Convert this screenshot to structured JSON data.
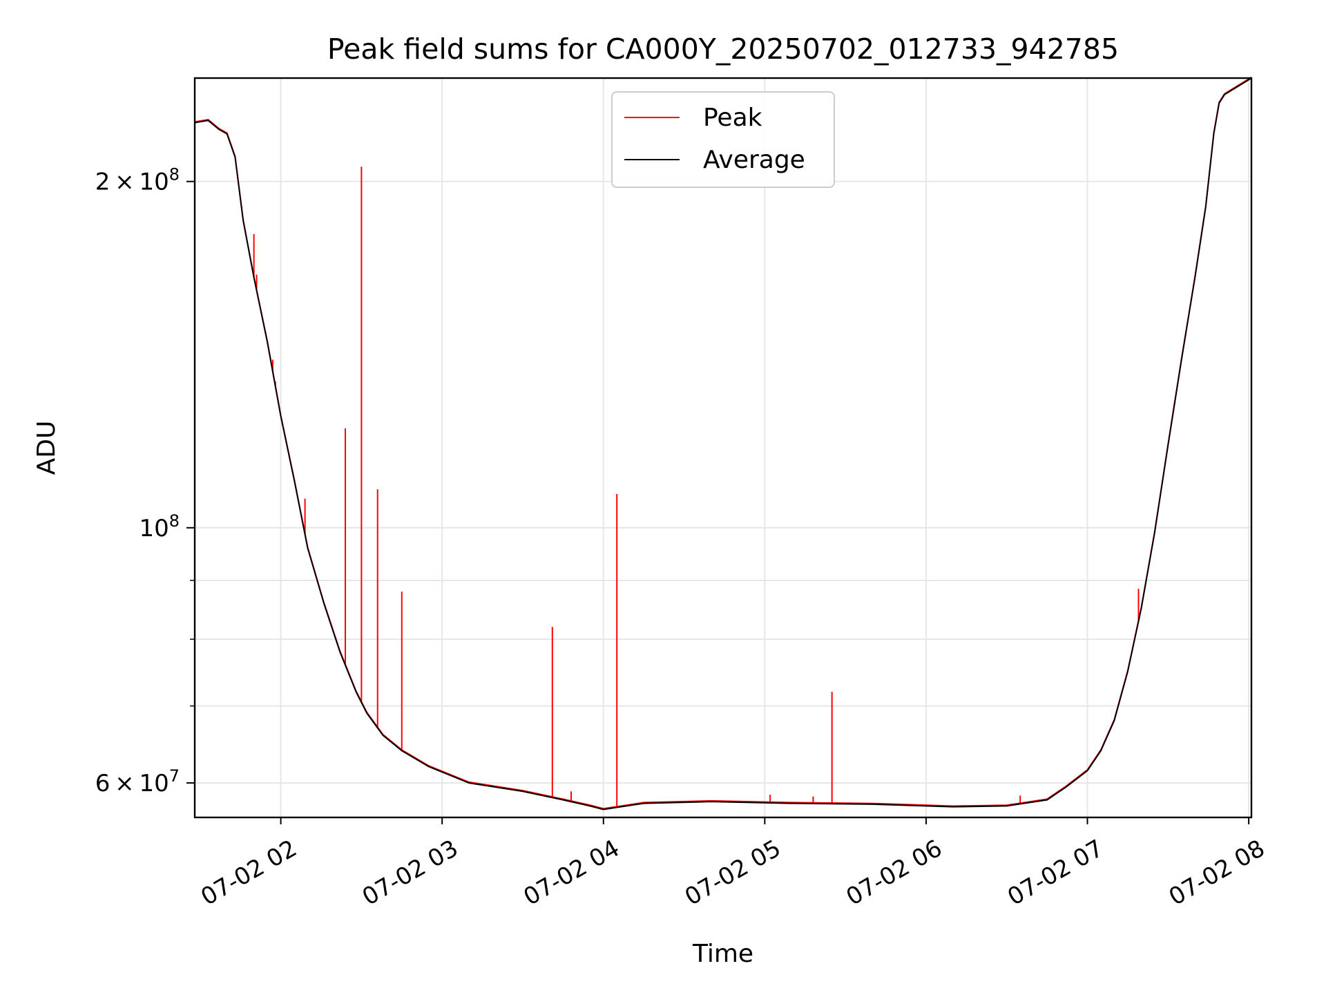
{
  "chart_data": {
    "type": "line",
    "title": "Peak field sums for CA000Y_20250702_012733_942785",
    "xlabel": "Time",
    "ylabel": "ADU",
    "x_range": [
      "07-02 01:28",
      "07-02 08:01"
    ],
    "ylim": [
      56000000,
      246000000
    ],
    "yscale": "log",
    "grid": true,
    "legend_position": "upper-center",
    "x_ticks": [
      {
        "x": "07-02 02:00",
        "label": "07-02 02"
      },
      {
        "x": "07-02 03:00",
        "label": "07-02 03"
      },
      {
        "x": "07-02 04:00",
        "label": "07-02 04"
      },
      {
        "x": "07-02 05:00",
        "label": "07-02 05"
      },
      {
        "x": "07-02 06:00",
        "label": "07-02 06"
      },
      {
        "x": "07-02 07:00",
        "label": "07-02 07"
      },
      {
        "x": "07-02 08:00",
        "label": "07-02 08"
      }
    ],
    "y_major_ticks": [
      {
        "value": 60000000,
        "mantissa": "6",
        "exp": "7"
      },
      {
        "value": 100000000,
        "mantissa": "",
        "exp": "8"
      },
      {
        "value": 200000000,
        "mantissa": "2",
        "exp": "8"
      }
    ],
    "y_minor_ticks": [
      70000000,
      80000000,
      90000000
    ],
    "series": [
      {
        "name": "Peak",
        "color": "#ff0000",
        "baseline": "Average",
        "spikes": [
          {
            "x": "07-02 01:50",
            "y": 180000000
          },
          {
            "x": "07-02 01:51",
            "y": 166000000
          },
          {
            "x": "07-02 01:57",
            "y": 140000000
          },
          {
            "x": "07-02 01:58",
            "y": 134000000
          },
          {
            "x": "07-02 02:09",
            "y": 106000000
          },
          {
            "x": "07-02 02:10",
            "y": 96000000
          },
          {
            "x": "07-02 02:24",
            "y": 122000000
          },
          {
            "x": "07-02 02:30",
            "y": 206000000
          },
          {
            "x": "07-02 02:36",
            "y": 108000000
          },
          {
            "x": "07-02 02:45",
            "y": 88000000
          },
          {
            "x": "07-02 03:41",
            "y": 82000000
          },
          {
            "x": "07-02 03:48",
            "y": 59000000
          },
          {
            "x": "07-02 04:05",
            "y": 107000000
          },
          {
            "x": "07-02 05:02",
            "y": 58600000
          },
          {
            "x": "07-02 05:18",
            "y": 58400000
          },
          {
            "x": "07-02 05:25",
            "y": 72000000
          },
          {
            "x": "07-02 06:35",
            "y": 58500000
          },
          {
            "x": "07-02 07:19",
            "y": 88500000
          }
        ]
      },
      {
        "name": "Average",
        "color": "#000000",
        "x": [
          "07-02 01:28",
          "07-02 01:33",
          "07-02 01:37",
          "07-02 01:40",
          "07-02 01:43",
          "07-02 01:46",
          "07-02 01:50",
          "07-02 01:55",
          "07-02 02:00",
          "07-02 02:05",
          "07-02 02:10",
          "07-02 02:16",
          "07-02 02:22",
          "07-02 02:28",
          "07-02 02:32",
          "07-02 02:38",
          "07-02 02:45",
          "07-02 02:55",
          "07-02 03:10",
          "07-02 03:30",
          "07-02 03:45",
          "07-02 03:55",
          "07-02 04:00",
          "07-02 04:15",
          "07-02 04:40",
          "07-02 05:10",
          "07-02 05:40",
          "07-02 06:10",
          "07-02 06:30",
          "07-02 06:45",
          "07-02 06:52",
          "07-02 07:00",
          "07-02 07:05",
          "07-02 07:10",
          "07-02 07:15",
          "07-02 07:20",
          "07-02 07:25",
          "07-02 07:30",
          "07-02 07:35",
          "07-02 07:40",
          "07-02 07:44",
          "07-02 07:47",
          "07-02 07:49",
          "07-02 07:51",
          "07-02 08:01"
        ],
        "y": [
          225000000,
          226000000,
          222000000,
          220000000,
          210000000,
          185000000,
          165000000,
          145000000,
          125000000,
          110000000,
          96000000,
          86000000,
          78000000,
          72000000,
          69000000,
          66000000,
          64000000,
          62000000,
          60000000,
          59000000,
          58000000,
          57300000,
          56900000,
          57600000,
          57800000,
          57600000,
          57500000,
          57200000,
          57300000,
          58000000,
          59500000,
          61500000,
          64000000,
          68000000,
          75000000,
          85000000,
          99000000,
          118000000,
          140000000,
          165000000,
          190000000,
          220000000,
          234000000,
          238000000,
          246000000
        ]
      }
    ]
  }
}
